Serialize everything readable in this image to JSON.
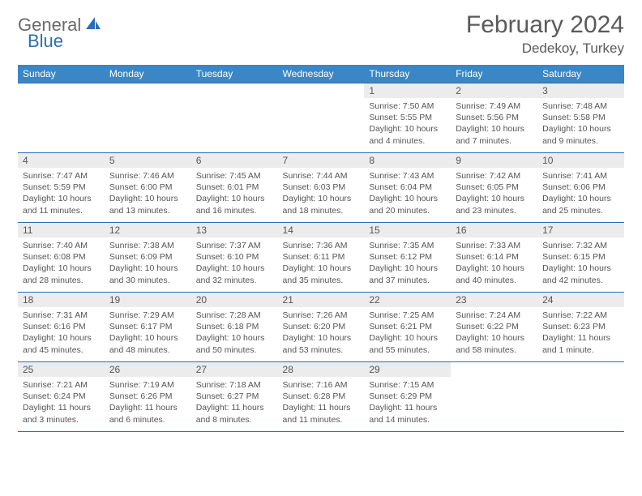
{
  "brand": {
    "part1": "General",
    "part2": "Blue"
  },
  "title": "February 2024",
  "location": "Dedekoy, Turkey",
  "colors": {
    "header_bg": "#3b86c5",
    "border": "#2a6fb5",
    "daynum_bg": "#ececec",
    "text": "#555555",
    "brand_gray": "#6a6a6a",
    "brand_blue": "#2a6fb5",
    "page_bg": "#ffffff"
  },
  "typography": {
    "title_fontsize": 30,
    "location_fontsize": 17,
    "dayheader_fontsize": 12,
    "daynum_fontsize": 12,
    "body_fontsize": 10.5
  },
  "dayHeaders": [
    "Sunday",
    "Monday",
    "Tuesday",
    "Wednesday",
    "Thursday",
    "Friday",
    "Saturday"
  ],
  "weeks": [
    [
      {
        "empty": true
      },
      {
        "empty": true
      },
      {
        "empty": true
      },
      {
        "empty": true
      },
      {
        "num": "1",
        "sunrise": "7:50 AM",
        "sunset": "5:55 PM",
        "daylight": "10 hours and 4 minutes."
      },
      {
        "num": "2",
        "sunrise": "7:49 AM",
        "sunset": "5:56 PM",
        "daylight": "10 hours and 7 minutes."
      },
      {
        "num": "3",
        "sunrise": "7:48 AM",
        "sunset": "5:58 PM",
        "daylight": "10 hours and 9 minutes."
      }
    ],
    [
      {
        "num": "4",
        "sunrise": "7:47 AM",
        "sunset": "5:59 PM",
        "daylight": "10 hours and 11 minutes."
      },
      {
        "num": "5",
        "sunrise": "7:46 AM",
        "sunset": "6:00 PM",
        "daylight": "10 hours and 13 minutes."
      },
      {
        "num": "6",
        "sunrise": "7:45 AM",
        "sunset": "6:01 PM",
        "daylight": "10 hours and 16 minutes."
      },
      {
        "num": "7",
        "sunrise": "7:44 AM",
        "sunset": "6:03 PM",
        "daylight": "10 hours and 18 minutes."
      },
      {
        "num": "8",
        "sunrise": "7:43 AM",
        "sunset": "6:04 PM",
        "daylight": "10 hours and 20 minutes."
      },
      {
        "num": "9",
        "sunrise": "7:42 AM",
        "sunset": "6:05 PM",
        "daylight": "10 hours and 23 minutes."
      },
      {
        "num": "10",
        "sunrise": "7:41 AM",
        "sunset": "6:06 PM",
        "daylight": "10 hours and 25 minutes."
      }
    ],
    [
      {
        "num": "11",
        "sunrise": "7:40 AM",
        "sunset": "6:08 PM",
        "daylight": "10 hours and 28 minutes."
      },
      {
        "num": "12",
        "sunrise": "7:38 AM",
        "sunset": "6:09 PM",
        "daylight": "10 hours and 30 minutes."
      },
      {
        "num": "13",
        "sunrise": "7:37 AM",
        "sunset": "6:10 PM",
        "daylight": "10 hours and 32 minutes."
      },
      {
        "num": "14",
        "sunrise": "7:36 AM",
        "sunset": "6:11 PM",
        "daylight": "10 hours and 35 minutes."
      },
      {
        "num": "15",
        "sunrise": "7:35 AM",
        "sunset": "6:12 PM",
        "daylight": "10 hours and 37 minutes."
      },
      {
        "num": "16",
        "sunrise": "7:33 AM",
        "sunset": "6:14 PM",
        "daylight": "10 hours and 40 minutes."
      },
      {
        "num": "17",
        "sunrise": "7:32 AM",
        "sunset": "6:15 PM",
        "daylight": "10 hours and 42 minutes."
      }
    ],
    [
      {
        "num": "18",
        "sunrise": "7:31 AM",
        "sunset": "6:16 PM",
        "daylight": "10 hours and 45 minutes."
      },
      {
        "num": "19",
        "sunrise": "7:29 AM",
        "sunset": "6:17 PM",
        "daylight": "10 hours and 48 minutes."
      },
      {
        "num": "20",
        "sunrise": "7:28 AM",
        "sunset": "6:18 PM",
        "daylight": "10 hours and 50 minutes."
      },
      {
        "num": "21",
        "sunrise": "7:26 AM",
        "sunset": "6:20 PM",
        "daylight": "10 hours and 53 minutes."
      },
      {
        "num": "22",
        "sunrise": "7:25 AM",
        "sunset": "6:21 PM",
        "daylight": "10 hours and 55 minutes."
      },
      {
        "num": "23",
        "sunrise": "7:24 AM",
        "sunset": "6:22 PM",
        "daylight": "10 hours and 58 minutes."
      },
      {
        "num": "24",
        "sunrise": "7:22 AM",
        "sunset": "6:23 PM",
        "daylight": "11 hours and 1 minute."
      }
    ],
    [
      {
        "num": "25",
        "sunrise": "7:21 AM",
        "sunset": "6:24 PM",
        "daylight": "11 hours and 3 minutes."
      },
      {
        "num": "26",
        "sunrise": "7:19 AM",
        "sunset": "6:26 PM",
        "daylight": "11 hours and 6 minutes."
      },
      {
        "num": "27",
        "sunrise": "7:18 AM",
        "sunset": "6:27 PM",
        "daylight": "11 hours and 8 minutes."
      },
      {
        "num": "28",
        "sunrise": "7:16 AM",
        "sunset": "6:28 PM",
        "daylight": "11 hours and 11 minutes."
      },
      {
        "num": "29",
        "sunrise": "7:15 AM",
        "sunset": "6:29 PM",
        "daylight": "11 hours and 14 minutes."
      },
      {
        "empty": true
      },
      {
        "empty": true
      }
    ]
  ]
}
